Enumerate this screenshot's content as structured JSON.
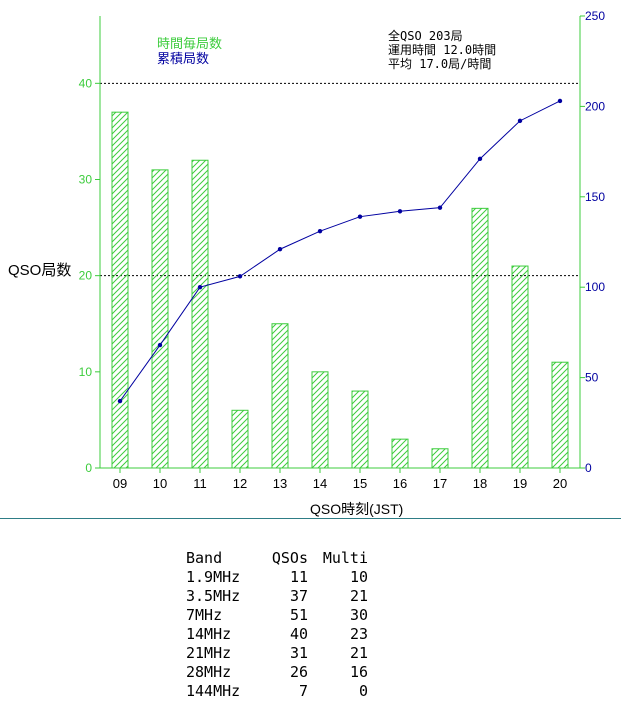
{
  "chart_data": {
    "type": "bar+line",
    "categories": [
      "09",
      "10",
      "11",
      "12",
      "13",
      "14",
      "15",
      "16",
      "17",
      "18",
      "19",
      "20"
    ],
    "series": [
      {
        "name": "時間毎局数",
        "type": "bar",
        "axis": "left",
        "values": [
          37,
          31,
          32,
          6,
          15,
          10,
          8,
          3,
          2,
          27,
          21,
          11
        ]
      },
      {
        "name": "累積局数",
        "type": "line",
        "axis": "right",
        "values": [
          37,
          68,
          100,
          106,
          121,
          131,
          139,
          142,
          144,
          171,
          192,
          203
        ]
      }
    ],
    "xlabel": "QSO時刻(JST)",
    "ylabel": "QSO局数",
    "ylim_left": [
      0,
      47
    ],
    "yticks_left": [
      0,
      10,
      20,
      30,
      40
    ],
    "ylim_right": [
      0,
      250
    ],
    "yticks_right": [
      0,
      50,
      100,
      150,
      200,
      250
    ],
    "dotted_gridlines_left": [
      20,
      40
    ],
    "legend_position": "top-left",
    "summary": [
      "全QSO 203局",
      "運用時間 12.0時間",
      "平均 17.0局/時間"
    ],
    "colors": {
      "bar": "#3ccc3c",
      "line": "#0000a0",
      "left_axis": "#3ccc3c",
      "right_axis": "#0000a0"
    }
  },
  "band_table": {
    "headers": [
      "Band",
      "QSOs",
      "Multi"
    ],
    "rows": [
      [
        "1.9MHz",
        "11",
        "10"
      ],
      [
        "3.5MHz",
        "37",
        "21"
      ],
      [
        "7MHz",
        "51",
        "30"
      ],
      [
        "14MHz",
        "40",
        "23"
      ],
      [
        "21MHz",
        "31",
        "21"
      ],
      [
        "28MHz",
        "26",
        "16"
      ],
      [
        "144MHz",
        "7",
        "0"
      ]
    ]
  }
}
